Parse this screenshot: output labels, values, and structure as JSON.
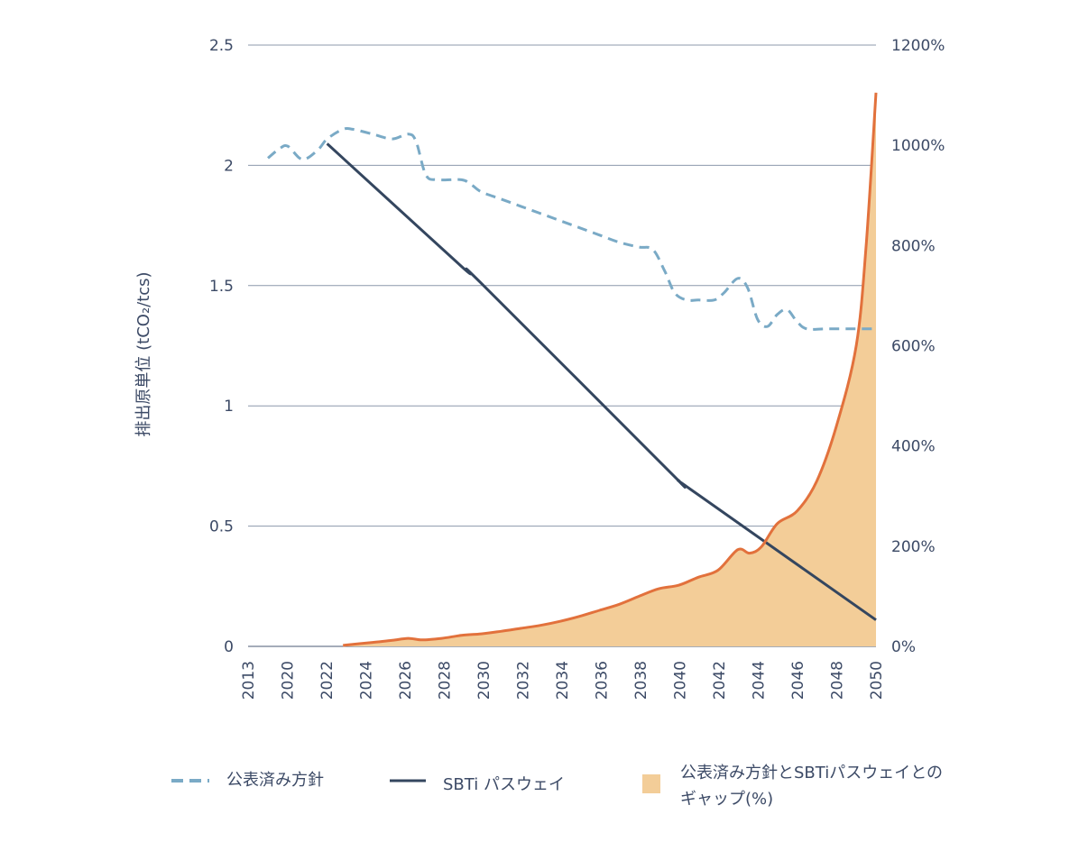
{
  "chart_data": {
    "type": "line",
    "ylabel": "排出原単位 (tCO₂/tcs)",
    "xlabel": "",
    "x_ticks": [
      "2013",
      "2020",
      "2022",
      "2024",
      "2026",
      "2028",
      "2030",
      "2032",
      "2034",
      "2036",
      "2038",
      "2040",
      "2042",
      "2044",
      "2046",
      "2048",
      "2050"
    ],
    "ylim": [
      0,
      2.5
    ],
    "y_ticks": [
      "0",
      "0.5",
      "1",
      "1.5",
      "2",
      "2.5"
    ],
    "y2lim": [
      0,
      1200
    ],
    "y2_ticks": [
      "0%",
      "200%",
      "400%",
      "600%",
      "800%",
      "1000%",
      "1200%"
    ],
    "grid": "horizontal",
    "legend_position": "bottom",
    "series": [
      {
        "name": "公表済み方針",
        "axis": "left",
        "style": "dashed",
        "color": "#7aaac6",
        "points": [
          [
            2019.2,
            2.03
          ],
          [
            2019.8,
            2.07
          ],
          [
            2020.2,
            2.08
          ],
          [
            2020.8,
            2.03
          ],
          [
            2021.2,
            2.03
          ],
          [
            2021.8,
            2.07
          ],
          [
            2022.2,
            2.11
          ],
          [
            2023.0,
            2.15
          ],
          [
            2023.5,
            2.15
          ],
          [
            2024.5,
            2.13
          ],
          [
            2025.5,
            2.11
          ],
          [
            2026.3,
            2.13
          ],
          [
            2026.7,
            2.1
          ],
          [
            2027.2,
            1.96
          ],
          [
            2027.8,
            1.94
          ],
          [
            2029.0,
            1.94
          ],
          [
            2029.5,
            1.92
          ],
          [
            2030.0,
            1.89
          ],
          [
            2031.0,
            1.86
          ],
          [
            2032.0,
            1.83
          ],
          [
            2033.0,
            1.8
          ],
          [
            2034.0,
            1.77
          ],
          [
            2035.0,
            1.74
          ],
          [
            2036.0,
            1.71
          ],
          [
            2037.0,
            1.68
          ],
          [
            2038.0,
            1.66
          ],
          [
            2038.7,
            1.65
          ],
          [
            2039.3,
            1.56
          ],
          [
            2039.8,
            1.47
          ],
          [
            2040.4,
            1.44
          ],
          [
            2041.0,
            1.44
          ],
          [
            2041.8,
            1.44
          ],
          [
            2042.3,
            1.47
          ],
          [
            2043.0,
            1.53
          ],
          [
            2043.5,
            1.49
          ],
          [
            2044.0,
            1.36
          ],
          [
            2044.5,
            1.33
          ],
          [
            2045.0,
            1.38
          ],
          [
            2045.5,
            1.4
          ],
          [
            2046.0,
            1.35
          ],
          [
            2046.5,
            1.32
          ],
          [
            2047.5,
            1.32
          ],
          [
            2049.0,
            1.32
          ],
          [
            2050.0,
            1.32
          ]
        ]
      },
      {
        "name": "SBTi パスウェイ",
        "axis": "left",
        "style": "solid",
        "color": "#34465f",
        "points": [
          [
            2022.2,
            2.09
          ],
          [
            2029.0,
            1.58
          ],
          [
            2030.0,
            1.51
          ],
          [
            2039.5,
            0.73
          ],
          [
            2040.0,
            0.69
          ],
          [
            2041.0,
            0.63
          ],
          [
            2050.0,
            0.11
          ]
        ]
      },
      {
        "name": "公表済み方針とSBTiパスウェイとのギャップ(%)",
        "axis": "right",
        "style": "area",
        "color": "#e2713c",
        "fill": "#f3cd98",
        "points": [
          [
            2023.0,
            2
          ],
          [
            2024.5,
            8
          ],
          [
            2025.5,
            12
          ],
          [
            2026.3,
            16
          ],
          [
            2027.0,
            13
          ],
          [
            2028.0,
            16
          ],
          [
            2029.0,
            22
          ],
          [
            2030.0,
            25
          ],
          [
            2031.0,
            30
          ],
          [
            2032.0,
            36
          ],
          [
            2033.0,
            42
          ],
          [
            2034.0,
            50
          ],
          [
            2035.0,
            60
          ],
          [
            2036.0,
            72
          ],
          [
            2037.0,
            84
          ],
          [
            2038.0,
            100
          ],
          [
            2039.0,
            115
          ],
          [
            2040.0,
            122
          ],
          [
            2041.0,
            138
          ],
          [
            2042.0,
            152
          ],
          [
            2043.0,
            193
          ],
          [
            2043.6,
            186
          ],
          [
            2044.2,
            199
          ],
          [
            2045.0,
            245
          ],
          [
            2046.0,
            270
          ],
          [
            2047.0,
            330
          ],
          [
            2048.0,
            440
          ],
          [
            2049.0,
            600
          ],
          [
            2049.5,
            800
          ],
          [
            2050.0,
            1105
          ]
        ]
      }
    ]
  },
  "legend": {
    "item1_label": "公表済み方針",
    "item2_label": "SBTi パスウェイ",
    "item3_line1": "公表済み方針とSBTiパスウェイとの",
    "item3_line2": "ギャップ(%)"
  }
}
